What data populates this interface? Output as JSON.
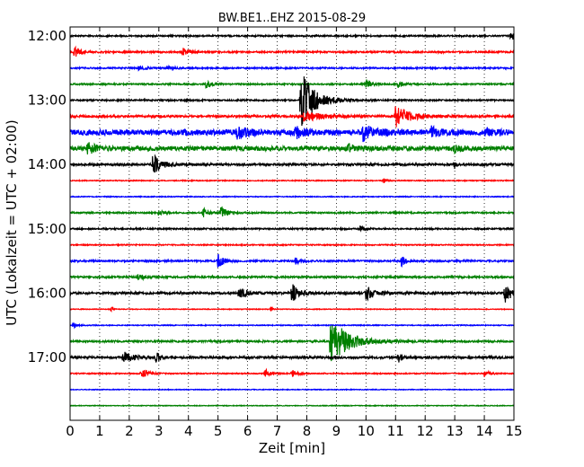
{
  "chart_data": {
    "type": "line",
    "title": "BW.BE1..EHZ 2015-08-29",
    "xlabel": "Zeit  [min]",
    "ylabel": "UTC (Lokalzeit = UTC + 02:00)",
    "xlim": [
      0,
      15
    ],
    "x_ticks": [
      0,
      1,
      2,
      3,
      4,
      5,
      6,
      7,
      8,
      9,
      10,
      11,
      12,
      13,
      14,
      15
    ],
    "x_tick_labels": [
      "0",
      "1",
      "2",
      "3",
      "4",
      "5",
      "6",
      "7",
      "8",
      "9",
      "10",
      "11",
      "12",
      "13",
      "14",
      "15"
    ],
    "y_ticks": [
      "12:00",
      "13:00",
      "14:00",
      "15:00",
      "16:00",
      "17:00"
    ],
    "grid": "vertical dotted at each minute",
    "trace_interval_minutes": 15,
    "color_cycle": [
      "#000000",
      "#ff0000",
      "#0000ff",
      "#008000"
    ],
    "traces": [
      {
        "start": "12:00",
        "noise": 0.8,
        "events": [
          {
            "t": 14.9,
            "amp": 6,
            "dur": 0.4
          }
        ]
      },
      {
        "start": "12:15",
        "noise": 0.9,
        "events": [
          {
            "t": 0.15,
            "amp": 6,
            "dur": 0.5
          },
          {
            "t": 3.8,
            "amp": 5,
            "dur": 0.5
          }
        ]
      },
      {
        "start": "12:30",
        "noise": 0.8,
        "events": [
          {
            "t": 2.3,
            "amp": 2,
            "dur": 0.5
          },
          {
            "t": 3.3,
            "amp": 2,
            "dur": 0.5
          }
        ]
      },
      {
        "start": "12:45",
        "noise": 0.8,
        "events": [
          {
            "t": 4.6,
            "amp": 4,
            "dur": 0.4
          },
          {
            "t": 10.0,
            "amp": 5,
            "dur": 0.4
          },
          {
            "t": 11.1,
            "amp": 5,
            "dur": 0.3
          }
        ]
      },
      {
        "start": "13:00",
        "noise": 0.8,
        "events": [
          {
            "t": 7.8,
            "amp": 34,
            "dur": 1.0
          }
        ]
      },
      {
        "start": "13:15",
        "noise": 1.2,
        "events": [
          {
            "t": 7.9,
            "amp": 6,
            "dur": 1.2
          },
          {
            "t": 11.0,
            "amp": 12,
            "dur": 1.0
          }
        ]
      },
      {
        "start": "13:30",
        "noise": 3.0,
        "events": [
          {
            "t": 5.6,
            "amp": 7,
            "dur": 0.7
          },
          {
            "t": 7.6,
            "amp": 6,
            "dur": 0.6
          },
          {
            "t": 9.9,
            "amp": 8,
            "dur": 0.8
          },
          {
            "t": 12.2,
            "amp": 5,
            "dur": 0.6
          },
          {
            "t": 14.0,
            "amp": 4,
            "dur": 0.6
          }
        ]
      },
      {
        "start": "13:45",
        "noise": 2.5,
        "events": [
          {
            "t": 0.6,
            "amp": 6,
            "dur": 0.6
          },
          {
            "t": 9.4,
            "amp": 4,
            "dur": 0.5
          },
          {
            "t": 13.0,
            "amp": 4,
            "dur": 0.5
          }
        ]
      },
      {
        "start": "14:00",
        "noise": 1.2,
        "events": [
          {
            "t": 2.8,
            "amp": 12,
            "dur": 0.6
          },
          {
            "t": 13.0,
            "amp": 5,
            "dur": 0.1
          }
        ]
      },
      {
        "start": "14:15",
        "noise": 0.5,
        "events": [
          {
            "t": 10.6,
            "amp": 3,
            "dur": 0.2
          }
        ]
      },
      {
        "start": "14:30",
        "noise": 0.5,
        "events": []
      },
      {
        "start": "14:45",
        "noise": 0.8,
        "events": [
          {
            "t": 3.0,
            "amp": 3,
            "dur": 0.3
          },
          {
            "t": 4.5,
            "amp": 5,
            "dur": 0.4
          },
          {
            "t": 5.1,
            "amp": 7,
            "dur": 0.4
          }
        ]
      },
      {
        "start": "15:00",
        "noise": 0.8,
        "events": [
          {
            "t": 9.8,
            "amp": 3,
            "dur": 0.4
          }
        ]
      },
      {
        "start": "15:15",
        "noise": 0.6,
        "events": []
      },
      {
        "start": "15:30",
        "noise": 0.9,
        "events": [
          {
            "t": 5.0,
            "amp": 8,
            "dur": 0.4
          },
          {
            "t": 7.6,
            "amp": 4,
            "dur": 0.4
          },
          {
            "t": 11.2,
            "amp": 6,
            "dur": 0.3
          }
        ]
      },
      {
        "start": "15:45",
        "noise": 1.0,
        "events": [
          {
            "t": 2.3,
            "amp": 3,
            "dur": 0.5
          }
        ]
      },
      {
        "start": "16:00",
        "noise": 1.2,
        "events": [
          {
            "t": 5.7,
            "amp": 7,
            "dur": 0.5
          },
          {
            "t": 7.5,
            "amp": 10,
            "dur": 0.6
          },
          {
            "t": 10.0,
            "amp": 8,
            "dur": 0.6
          },
          {
            "t": 14.7,
            "amp": 10,
            "dur": 0.5
          }
        ]
      },
      {
        "start": "16:15",
        "noise": 0.4,
        "events": [
          {
            "t": 1.4,
            "amp": 3,
            "dur": 0.1
          },
          {
            "t": 6.8,
            "amp": 3,
            "dur": 0.1
          }
        ]
      },
      {
        "start": "16:30",
        "noise": 0.5,
        "events": [
          {
            "t": 0.1,
            "amp": 3,
            "dur": 0.3
          }
        ]
      },
      {
        "start": "16:45",
        "noise": 1.0,
        "events": [
          {
            "t": 8.8,
            "amp": 26,
            "dur": 1.3
          }
        ]
      },
      {
        "start": "17:00",
        "noise": 1.2,
        "events": [
          {
            "t": 1.8,
            "amp": 6,
            "dur": 0.8
          },
          {
            "t": 2.9,
            "amp": 8,
            "dur": 0.3
          },
          {
            "t": 11.1,
            "amp": 5,
            "dur": 0.3
          }
        ]
      },
      {
        "start": "17:15",
        "noise": 0.6,
        "events": [
          {
            "t": 2.4,
            "amp": 7,
            "dur": 0.4
          },
          {
            "t": 6.6,
            "amp": 5,
            "dur": 0.3
          },
          {
            "t": 7.5,
            "amp": 5,
            "dur": 0.3
          },
          {
            "t": 14.0,
            "amp": 5,
            "dur": 0.3
          }
        ]
      },
      {
        "start": "17:30",
        "noise": 0.4,
        "events": []
      },
      {
        "start": "17:45",
        "noise": 0.4,
        "events": []
      }
    ]
  }
}
